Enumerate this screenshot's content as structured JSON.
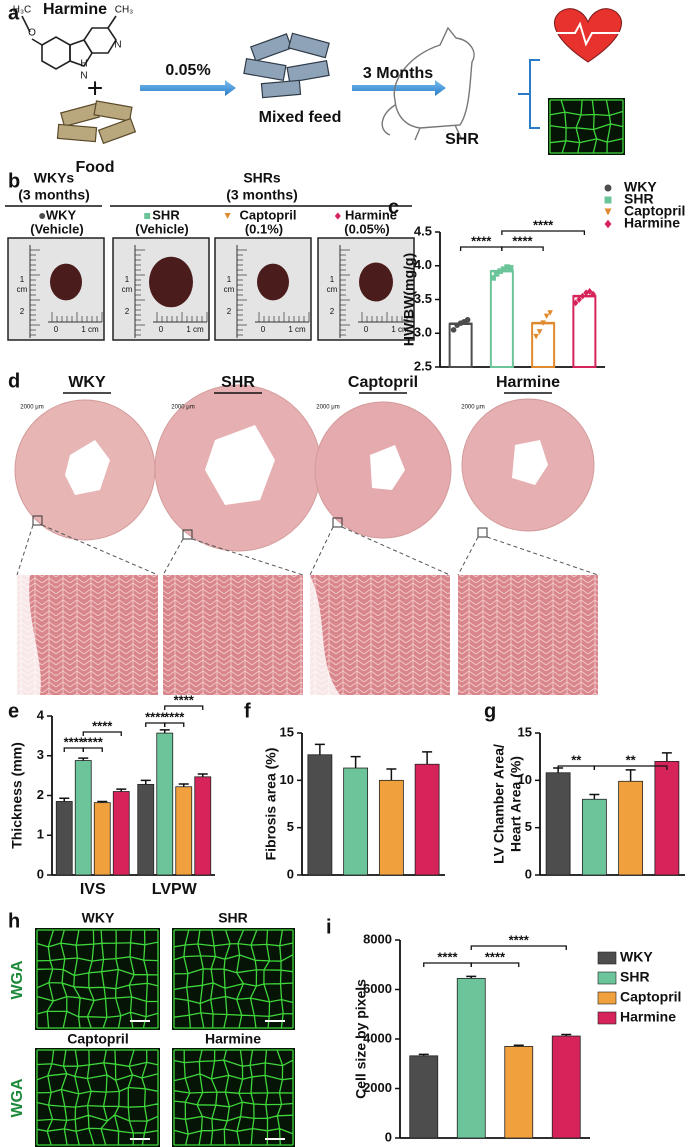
{
  "panels": [
    "a",
    "b",
    "c",
    "d",
    "e",
    "f",
    "g",
    "h",
    "i"
  ],
  "scheme": {
    "compound": "Harmine",
    "atoms": [
      "H₃C",
      "O",
      "N",
      "H",
      "N",
      "CH₃"
    ],
    "plus": "+",
    "food": "Food",
    "dose": "0.05%",
    "feed": "Mixed feed",
    "duration": "3 Months",
    "model": "SHR"
  },
  "photos": {
    "groups": [
      {
        "title": "WKYs",
        "subtitle": "(3 months)"
      },
      {
        "title": "SHRs",
        "subtitle": "(3 months)"
      }
    ],
    "samples": [
      {
        "name": "WKY",
        "note": "(Vehicle)",
        "color": "#4d4d4d",
        "marker": "circle"
      },
      {
        "name": "SHR",
        "note": "(Vehicle)",
        "color": "#6cc49a",
        "marker": "square"
      },
      {
        "name": "Captopril",
        "note": "(0.1%)",
        "color": "#e08a2e",
        "marker": "triangle"
      },
      {
        "name": "Harmine",
        "note": "(0.05%)",
        "color": "#d6245a",
        "marker": "diamond"
      }
    ],
    "ruler": [
      "1",
      "cm",
      "2",
      "0",
      "1 cm"
    ]
  },
  "histology": {
    "titles": [
      "WKY",
      "SHR",
      "Captopril",
      "Harmine"
    ],
    "scale": "2000 μm"
  },
  "wga": {
    "titles": [
      "WKY",
      "SHR",
      "Captopril",
      "Harmine"
    ],
    "stain": "WGA"
  },
  "chart_data": [
    {
      "panel": "c",
      "type": "bar",
      "bar_style": "open",
      "ylabel": "HW/BW(mg/g)",
      "ylim": [
        2.5,
        4.5
      ],
      "yticks": [
        2.5,
        {
          "value": 3,
          "label": "3.0"
        },
        3.5,
        {
          "value": 4,
          "label": "4.0"
        },
        4.5
      ],
      "series": [
        {
          "name": "WKY",
          "color": "#4d4d4d",
          "marker": "circle",
          "values": [
            3.14
          ],
          "points": [
            3.05,
            3.12,
            3.15,
            3.17,
            3.2
          ]
        },
        {
          "name": "SHR",
          "color": "#6cc49a",
          "marker": "square",
          "values": [
            3.92
          ],
          "points": [
            3.82,
            3.88,
            3.92,
            3.95,
            3.98,
            3.97
          ]
        },
        {
          "name": "Captopril",
          "color": "#e08a2e",
          "marker": "triangle",
          "values": [
            3.15
          ],
          "points": [
            2.95,
            3.02,
            3.15,
            3.25,
            3.3
          ]
        },
        {
          "name": "Harmine",
          "color": "#d6245a",
          "marker": "diamond",
          "values": [
            3.55
          ],
          "points": [
            3.45,
            3.5,
            3.55,
            3.6,
            3.62,
            3.58
          ]
        }
      ],
      "annotations": [
        "****",
        "****",
        "****"
      ],
      "legend": "right"
    },
    {
      "panel": "e",
      "type": "bar",
      "ylabel": "Thickness (mm)",
      "ylim": [
        0,
        4
      ],
      "yticks": [
        0,
        1,
        2,
        3,
        4
      ],
      "categories": [
        "IVS",
        "LVPW"
      ],
      "series": [
        {
          "color": "#4d4d4d",
          "values": [
            1.85,
            2.28
          ],
          "errors": [
            0.08,
            0.1
          ]
        },
        {
          "color": "#6cc49a",
          "values": [
            2.88,
            3.57
          ],
          "errors": [
            0.06,
            0.08
          ]
        },
        {
          "color": "#f0a03c",
          "values": [
            1.82,
            2.22
          ],
          "errors": [
            0.03,
            0.07
          ]
        },
        {
          "color": "#d6245a",
          "values": [
            2.1,
            2.47
          ],
          "errors": [
            0.06,
            0.07
          ]
        }
      ],
      "annotations": [
        "****",
        "****",
        "****",
        "****",
        "****",
        "****"
      ]
    },
    {
      "panel": "f",
      "type": "bar",
      "ylabel": "Fibrosis area (%)",
      "ylim": [
        0,
        15
      ],
      "yticks": [
        0,
        5,
        10,
        15
      ],
      "values": [
        12.7,
        11.3,
        10.0,
        11.7
      ],
      "errors": [
        1.1,
        1.2,
        1.2,
        1.3
      ],
      "colors": [
        "#4d4d4d",
        "#6cc49a",
        "#f0a03c",
        "#d6245a"
      ],
      "annotations": []
    },
    {
      "panel": "g",
      "type": "bar",
      "ylabel": [
        "LV Chamber Area/",
        "Heart Area (%)"
      ],
      "ylim": [
        0,
        15
      ],
      "yticks": [
        0,
        5,
        10,
        15
      ],
      "values": [
        10.8,
        8.0,
        9.9,
        12.0
      ],
      "errors": [
        0.5,
        0.5,
        1.2,
        0.9
      ],
      "colors": [
        "#4d4d4d",
        "#6cc49a",
        "#f0a03c",
        "#d6245a"
      ],
      "annotations": [
        "**",
        "**"
      ]
    },
    {
      "panel": "i",
      "type": "bar",
      "ylabel": "Cell size by pixels",
      "ylim": [
        0,
        8000
      ],
      "yticks": [
        0,
        2000,
        4000,
        6000,
        8000
      ],
      "series": [
        {
          "name": "WKY",
          "color": "#4d4d4d",
          "values": [
            3320
          ],
          "errors": [
            60
          ]
        },
        {
          "name": "SHR",
          "color": "#6cc49a",
          "values": [
            6450
          ],
          "errors": [
            80
          ]
        },
        {
          "name": "Captopril",
          "color": "#f0a03c",
          "values": [
            3700
          ],
          "errors": [
            50
          ]
        },
        {
          "name": "Harmine",
          "color": "#d6245a",
          "values": [
            4120
          ],
          "errors": [
            60
          ]
        }
      ],
      "annotations": [
        "****",
        "****",
        "****"
      ],
      "legend": "right"
    }
  ]
}
